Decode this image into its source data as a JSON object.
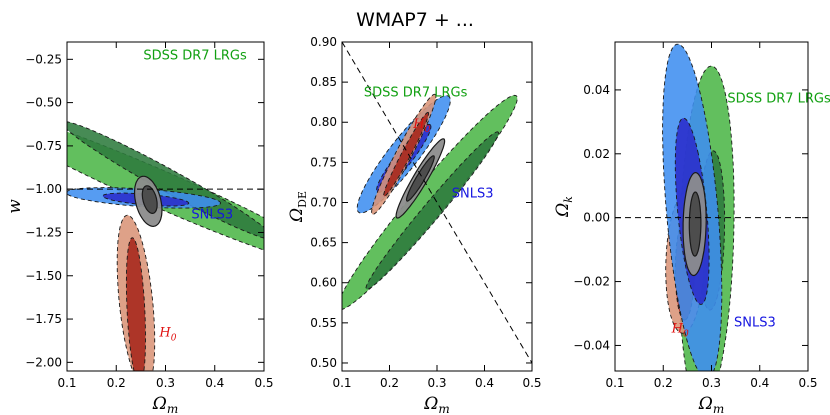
{
  "title": "WMAP7 + ...",
  "colors": {
    "lrg_outer": "#4cb648",
    "lrg_inner": "#2e7b3e",
    "snls_outer": "#3f8ef0",
    "snls_inner": "#2a2ccb",
    "h0_outer": "#d99477",
    "h0_inner": "#a6261a",
    "comb_outer": "#8c8c8c",
    "comb_inner": "#4a4a4a",
    "lrg_text": "#11a011",
    "snls_text": "#1515e0",
    "h0_text": "#e01010"
  },
  "chart_data": [
    {
      "type": "contour",
      "name": "w-vs-omega-m",
      "xlabel": "Ω",
      "xlabel_sub": "m",
      "ylabel": "w",
      "xlim": [
        0.1,
        0.5
      ],
      "ylim": [
        -2.05,
        -0.15
      ],
      "xticks": [
        0.1,
        0.2,
        0.3,
        0.4,
        0.5
      ],
      "yticks": [
        -2.0,
        -1.75,
        -1.5,
        -1.25,
        -1.0,
        -0.75,
        -0.5,
        -0.25
      ],
      "xtick_labels": [
        "0.1",
        "0.2",
        "0.3",
        "0.4",
        "0.5"
      ],
      "ytick_labels": [
        "−2.00",
        "−1.75",
        "−1.50",
        "−1.25",
        "−1.00",
        "−0.75",
        "−0.50",
        "−0.25"
      ],
      "hline": -1.0,
      "annotations": [
        {
          "key": "lrg",
          "text": "SDSS DR7 LRGs",
          "x": 0.36,
          "y": -0.25
        },
        {
          "key": "snls",
          "text": "SNLS3",
          "x": 0.395,
          "y": -1.17
        },
        {
          "key": "h0",
          "text": "H",
          "sub": "0",
          "x": 0.305,
          "y": -1.85
        }
      ],
      "contours": [
        {
          "dataset": "lrg",
          "level": "outer",
          "cx": 0.29,
          "cy": -1.0,
          "angle": -52,
          "a": 0.58,
          "b": 0.072
        },
        {
          "dataset": "lrg",
          "level": "inner",
          "cx": 0.305,
          "cy": -0.95,
          "angle": -58,
          "a": 0.4,
          "b": 0.04
        },
        {
          "dataset": "h0",
          "level": "outer",
          "cx": 0.24,
          "cy": -1.65,
          "angle": -88,
          "a": 0.5,
          "b": 0.034
        },
        {
          "dataset": "h0",
          "level": "inner",
          "cx": 0.24,
          "cy": -1.7,
          "angle": -89,
          "a": 0.42,
          "b": 0.018
        },
        {
          "dataset": "snls",
          "level": "outer",
          "cx": 0.255,
          "cy": -1.05,
          "angle": -12,
          "a": 0.16,
          "b": 0.05
        },
        {
          "dataset": "snls",
          "level": "inner",
          "cx": 0.26,
          "cy": -1.06,
          "angle": -15,
          "a": 0.09,
          "b": 0.03
        },
        {
          "dataset": "comb",
          "level": "outer",
          "cx": 0.265,
          "cy": -1.07,
          "angle": -86,
          "a": 0.145,
          "b": 0.026
        },
        {
          "dataset": "comb",
          "level": "inner",
          "cx": 0.268,
          "cy": -1.06,
          "angle": -86,
          "a": 0.08,
          "b": 0.014
        }
      ]
    },
    {
      "type": "contour",
      "name": "omega-de-vs-omega-m",
      "xlabel": "Ω",
      "xlabel_sub": "m",
      "ylabel": "Ω",
      "ylabel_sub": "DE",
      "xlim": [
        0.1,
        0.5
      ],
      "ylim": [
        0.49,
        0.9
      ],
      "xticks": [
        0.1,
        0.2,
        0.3,
        0.4,
        0.5
      ],
      "yticks": [
        0.5,
        0.55,
        0.6,
        0.65,
        0.7,
        0.75,
        0.8,
        0.85,
        0.9
      ],
      "xtick_labels": [
        "0.1",
        "0.2",
        "0.3",
        "0.4",
        "0.5"
      ],
      "ytick_labels": [
        "0.50",
        "0.55",
        "0.60",
        "0.65",
        "0.70",
        "0.75",
        "0.80",
        "0.85",
        "0.90"
      ],
      "diagline": [
        [
          0.1,
          0.9
        ],
        [
          0.5,
          0.5
        ]
      ],
      "annotations": [
        {
          "key": "lrg",
          "text": "SDSS DR7 LRGs",
          "x": 0.255,
          "y": 0.832
        },
        {
          "key": "snls",
          "text": "SNLS3",
          "x": 0.375,
          "y": 0.706
        },
        {
          "key": "h0",
          "text": "H",
          "sub": "0",
          "x": 0.268,
          "y": 0.793
        }
      ],
      "contours": [
        {
          "dataset": "lrg",
          "level": "outer",
          "cx": 0.28,
          "cy": 0.7,
          "angle": 35,
          "a": 0.23,
          "b": 0.026
        },
        {
          "dataset": "lrg",
          "level": "inner",
          "cx": 0.29,
          "cy": 0.69,
          "angle": 35,
          "a": 0.17,
          "b": 0.014
        },
        {
          "dataset": "snls",
          "level": "outer",
          "cx": 0.23,
          "cy": 0.76,
          "angle": 36,
          "a": 0.12,
          "b": 0.024
        },
        {
          "dataset": "snls",
          "level": "inner",
          "cx": 0.23,
          "cy": 0.755,
          "angle": 36,
          "a": 0.07,
          "b": 0.013
        },
        {
          "dataset": "h0",
          "level": "outer",
          "cx": 0.23,
          "cy": 0.76,
          "angle": 48,
          "a": 0.1,
          "b": 0.014
        },
        {
          "dataset": "h0",
          "level": "inner",
          "cx": 0.235,
          "cy": 0.76,
          "angle": 48,
          "a": 0.07,
          "b": 0.008
        },
        {
          "dataset": "comb",
          "level": "outer",
          "cx": 0.265,
          "cy": 0.73,
          "angle": 44,
          "a": 0.07,
          "b": 0.012
        },
        {
          "dataset": "comb",
          "level": "inner",
          "cx": 0.265,
          "cy": 0.73,
          "angle": 44,
          "a": 0.04,
          "b": 0.007
        }
      ]
    },
    {
      "type": "contour",
      "name": "omega-k-vs-omega-m",
      "xlabel": "Ω",
      "xlabel_sub": "m",
      "ylabel": "Ω",
      "ylabel_sub": "k",
      "xlim": [
        0.1,
        0.5
      ],
      "ylim": [
        -0.048,
        0.055
      ],
      "xticks": [
        0.1,
        0.2,
        0.3,
        0.4,
        0.5
      ],
      "yticks": [
        -0.04,
        -0.02,
        0.0,
        0.02,
        0.04
      ],
      "xtick_labels": [
        "0.1",
        "0.2",
        "0.3",
        "0.4",
        "0.5"
      ],
      "ytick_labels": [
        "−0.04",
        "−0.02",
        "0.00",
        "0.02",
        "0.04"
      ],
      "hline": 0.0,
      "annotations": [
        {
          "key": "lrg",
          "text": "SDSS DR7 LRGs",
          "x": 0.44,
          "y": 0.036
        },
        {
          "key": "snls",
          "text": "SNLS3",
          "x": 0.39,
          "y": -0.034
        },
        {
          "key": "h0",
          "text": "H",
          "sub": "0",
          "x": 0.235,
          "y": -0.036
        }
      ],
      "contours": [
        {
          "dataset": "lrg",
          "level": "outer",
          "cx": 0.29,
          "cy": -0.006,
          "angle": -55,
          "a": 0.05,
          "b": 0.06
        },
        {
          "dataset": "lrg",
          "level": "inner",
          "cx": 0.3,
          "cy": -0.004,
          "angle": -62,
          "a": 0.024,
          "b": 0.028
        },
        {
          "dataset": "h0",
          "level": "outer",
          "cx": 0.245,
          "cy": -0.014,
          "angle": -85,
          "a": 0.022,
          "b": 0.04
        },
        {
          "dataset": "h0",
          "level": "inner",
          "cx": 0.245,
          "cy": -0.016,
          "angle": -85,
          "a": 0.016,
          "b": 0.02
        },
        {
          "dataset": "snls",
          "level": "outer",
          "cx": 0.26,
          "cy": 0.002,
          "angle": 54,
          "a": 0.04,
          "b": 0.07
        },
        {
          "dataset": "snls",
          "level": "inner",
          "cx": 0.26,
          "cy": 0.002,
          "angle": 55,
          "a": 0.022,
          "b": 0.04
        },
        {
          "dataset": "comb",
          "level": "outer",
          "cx": 0.265,
          "cy": -0.002,
          "angle": -84,
          "a": 0.016,
          "b": 0.024
        },
        {
          "dataset": "comb",
          "level": "inner",
          "cx": 0.266,
          "cy": -0.002,
          "angle": -84,
          "a": 0.01,
          "b": 0.012
        }
      ]
    }
  ]
}
